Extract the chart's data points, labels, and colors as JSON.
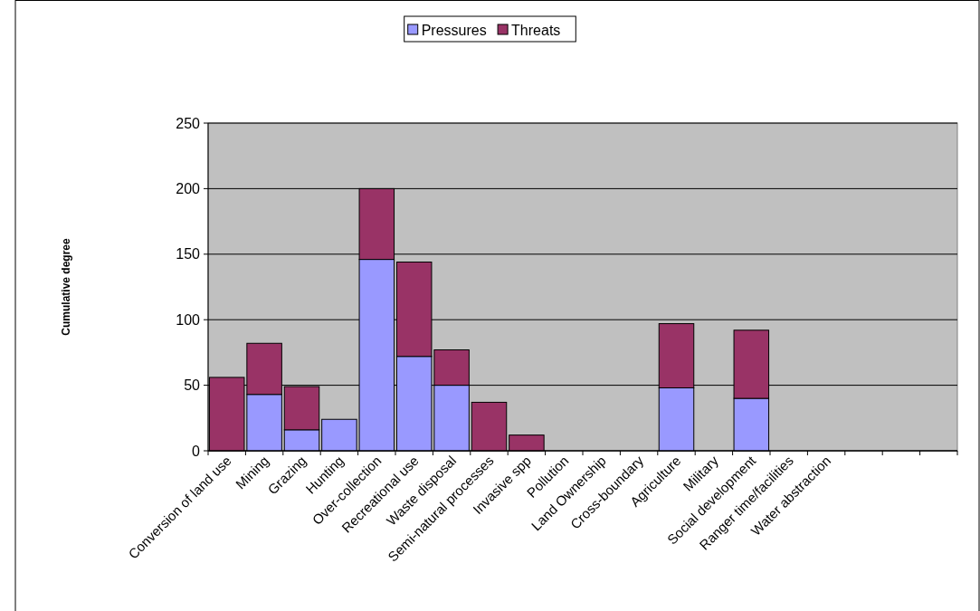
{
  "chart_data": {
    "type": "bar",
    "stacked": true,
    "ylabel": "Cumulative degree",
    "categories": [
      "Conversion of land use",
      "Mining",
      "Grazing",
      "Hunting",
      "Over-collection",
      "Recreational use",
      "Waste disposal",
      "Semi-natural processes",
      "Invasive spp",
      "Pollution",
      "Land Ownership",
      "Cross-boundary",
      "Agriculture",
      "Military",
      "Social development",
      "Ranger time/facilities",
      "Water abstraction",
      null,
      null,
      null
    ],
    "series": [
      {
        "name": "Pressures",
        "color": "#9999ff",
        "values": [
          0,
          43,
          16,
          24,
          146,
          72,
          50,
          0,
          0,
          0,
          0,
          0,
          48,
          0,
          40,
          0,
          0,
          0,
          0,
          0
        ]
      },
      {
        "name": "Threats",
        "color": "#993366",
        "values": [
          56,
          39,
          33,
          0,
          54,
          72,
          27,
          37,
          12,
          0,
          0,
          0,
          49,
          0,
          52,
          0,
          0,
          0,
          0,
          0
        ]
      }
    ],
    "ylim": [
      0,
      250
    ],
    "yticks": [
      0,
      50,
      100,
      150,
      200,
      250
    ],
    "grid": "y",
    "legend": "top"
  }
}
